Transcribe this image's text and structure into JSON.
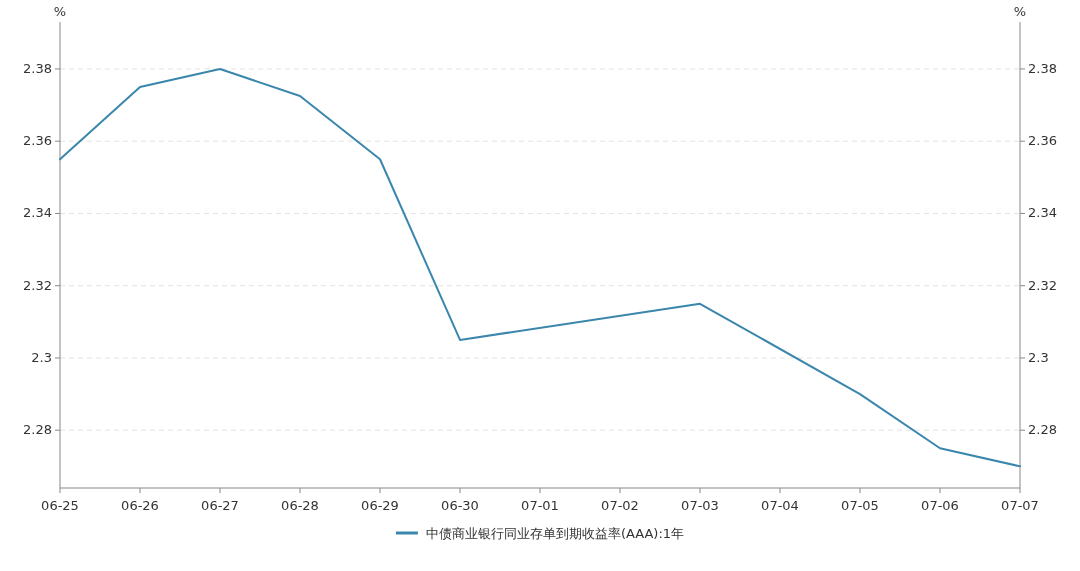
{
  "chart_data": {
    "type": "line",
    "ylabel": "%",
    "y2label": "%",
    "xlim": [
      "--06-25",
      "--07-07"
    ],
    "xticks": [
      {
        "value": "--06-25",
        "label": "06-25"
      },
      {
        "value": "--06-26",
        "label": "06-26"
      },
      {
        "value": "--06-27",
        "label": "06-27"
      },
      {
        "value": "--06-28",
        "label": "06-28"
      },
      {
        "value": "--06-29",
        "label": "06-29"
      },
      {
        "value": "--06-30",
        "label": "06-30"
      },
      {
        "value": "--07-01",
        "label": "07-01"
      },
      {
        "value": "--07-02",
        "label": "07-02"
      },
      {
        "value": "--07-03",
        "label": "07-03"
      },
      {
        "value": "--07-04",
        "label": "07-04"
      },
      {
        "value": "--07-05",
        "label": "07-05"
      },
      {
        "value": "--07-06",
        "label": "07-06"
      },
      {
        "value": "--07-07",
        "label": "07-07"
      }
    ],
    "ylim": [
      2.264,
      2.393
    ],
    "yticks": [
      2.28,
      2.3,
      2.32,
      2.34,
      2.36,
      2.38
    ],
    "y2lim": [
      2.264,
      2.393
    ],
    "y2ticks": [
      2.28,
      2.3,
      2.32,
      2.34,
      2.36,
      2.38
    ],
    "grid": "y",
    "legend": "bottom",
    "series": [
      {
        "name": "中债商业银行同业存单到期收益率(AAA):1年",
        "color": "#3a86ad",
        "x": [
          "--06-25",
          "--06-26",
          "--06-27",
          "--06-28",
          "--06-29",
          "--06-30",
          "--07-03",
          "--07-05",
          "--07-06",
          "--07-07"
        ],
        "values": [
          2.355,
          2.375,
          2.38,
          2.3725,
          2.355,
          2.305,
          2.315,
          2.29,
          2.275,
          2.27
        ]
      }
    ]
  }
}
